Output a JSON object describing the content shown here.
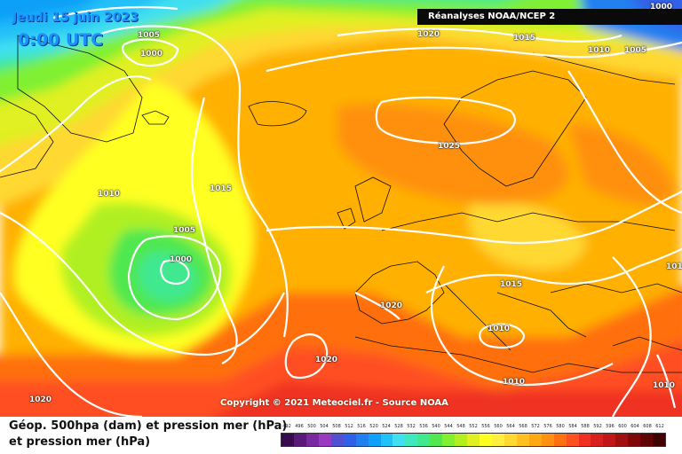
{
  "header": {
    "date": "Jeudi 15 juin 2023",
    "time": "0:00 UTC",
    "source": "Réanalyses NOAA/NCEP 2"
  },
  "footer": {
    "copyright": "Copyright © 2021 Meteociel.fr - Source NOAA"
  },
  "legend": {
    "line1": "Géop. 500hpa (dam) et pression mer (hPa)",
    "line2": "et pression mer (hPa)",
    "scale": [
      "492",
      "496",
      "500",
      "504",
      "508",
      "512",
      "516",
      "520",
      "524",
      "528",
      "532",
      "536",
      "540",
      "544",
      "548",
      "552",
      "556",
      "560",
      "564",
      "568",
      "572",
      "576",
      "580",
      "584",
      "588",
      "592",
      "596",
      "600",
      "604",
      "608",
      "612"
    ],
    "colors": [
      "#3a0a50",
      "#5a1a7a",
      "#7a2aa0",
      "#9a3ac0",
      "#5050d0",
      "#3060e8",
      "#2080f0",
      "#10a0f8",
      "#20c0f8",
      "#40e0f0",
      "#40e8c0",
      "#40e890",
      "#50e850",
      "#80f030",
      "#b0f020",
      "#e0f020",
      "#ffff20",
      "#fff040",
      "#ffd830",
      "#ffc020",
      "#ffa810",
      "#ff9010",
      "#ff7010",
      "#ff5020",
      "#f03020",
      "#d82020",
      "#c01818",
      "#a01010",
      "#800808",
      "#600404",
      "#400202"
    ]
  },
  "pressure_labels": [
    {
      "text": "1005"
    },
    {
      "text": "1000"
    },
    {
      "text": "1020"
    },
    {
      "text": "1015"
    },
    {
      "text": "1010"
    },
    {
      "text": "1005"
    },
    {
      "text": "1025"
    },
    {
      "text": "1015"
    },
    {
      "text": "1010"
    },
    {
      "text": "1005"
    },
    {
      "text": "1000"
    },
    {
      "text": "1020"
    },
    {
      "text": "1015"
    },
    {
      "text": "1010"
    },
    {
      "text": "1020"
    },
    {
      "text": "1010"
    },
    {
      "text": "1020"
    },
    {
      "text": "1010"
    },
    {
      "text": "101"
    },
    {
      "text": "1000"
    }
  ]
}
